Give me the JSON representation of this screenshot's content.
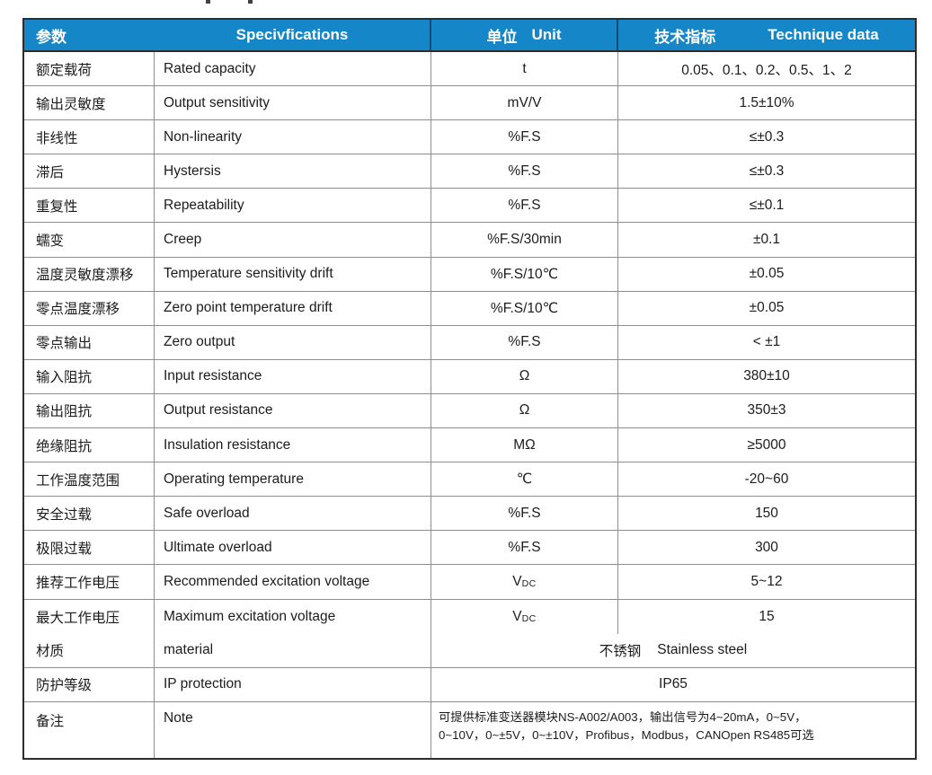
{
  "colors": {
    "header_bg": "#1586c8",
    "header_text": "#ffffff",
    "outer_border": "#2b2d30",
    "grid_line": "#8c8f92",
    "body_text": "#1c1c1c"
  },
  "header": {
    "param_cn": "参数",
    "spec_en": "Specivfications",
    "unit_cn": "单位",
    "unit_en": "Unit",
    "tech_cn": "技术指标",
    "tech_en": "Technique data"
  },
  "rows": [
    {
      "param": "额定载荷",
      "spec": "Rated capacity",
      "unit": "t",
      "value": "0.05、0.1、0.2、0.5、1、2"
    },
    {
      "param": "输出灵敏度",
      "spec": "Output sensitivity",
      "unit": "mV/V",
      "value": "1.5±10%"
    },
    {
      "param": "非线性",
      "spec": "Non-linearity",
      "unit": "%F.S",
      "value": "≤±0.3"
    },
    {
      "param": "滞后",
      "spec": "Hystersis",
      "unit": "%F.S",
      "value": "≤±0.3"
    },
    {
      "param": "重复性",
      "spec": "Repeatability",
      "unit": "%F.S",
      "value": "≤±0.1"
    },
    {
      "param": "蠕变",
      "spec": "Creep",
      "unit": "%F.S/30min",
      "value": "±0.1"
    },
    {
      "param": "温度灵敏度漂移",
      "spec": "Temperature sensitivity drift",
      "unit": "%F.S/10℃",
      "value": "±0.05"
    },
    {
      "param": "零点温度漂移",
      "spec": "Zero point temperature drift",
      "unit": "%F.S/10℃",
      "value": "±0.05"
    },
    {
      "param": "零点输出",
      "spec": "Zero output",
      "unit": "%F.S",
      "value": "< ±1"
    },
    {
      "param": "输入阻抗",
      "spec": "Input resistance",
      "unit": "Ω",
      "value": "380±10"
    },
    {
      "param": "输出阻抗",
      "spec": "Output resistance",
      "unit": "Ω",
      "value": "350±3"
    },
    {
      "param": "绝缘阻抗",
      "spec": "Insulation resistance",
      "unit": "MΩ",
      "value": "≥5000"
    },
    {
      "param": "工作温度范围",
      "spec": "Operating temperature",
      "unit": "℃",
      "value": "-20~60"
    },
    {
      "param": "安全过载",
      "spec": "Safe overload",
      "unit": "%F.S",
      "value": "150"
    },
    {
      "param": "极限过载",
      "spec": "Ultimate overload",
      "unit": "%F.S",
      "value": "300"
    },
    {
      "param": "推荐工作电压",
      "spec": "Recommended excitation voltage",
      "unit": "V",
      "unit_sub": "DC",
      "value": "5~12"
    },
    {
      "param": "最大工作电压",
      "spec": "Maximum excitation voltage",
      "unit": "V",
      "unit_sub": "DC",
      "value": "15"
    }
  ],
  "merged": {
    "material": {
      "param": "材质",
      "spec": "material",
      "value_cn": "不锈钢",
      "value_en": "Stainless steel"
    },
    "ip": {
      "param": "防护等级",
      "spec": "IP protection",
      "value": "IP65"
    },
    "note": {
      "param": "备注",
      "spec": "Note",
      "line1": "可提供标准变送器模块NS-A002/A003，输出信号为4~20mA，0~5V，",
      "line2": "0~10V，0~±5V，0~±10V，Profibus，Modbus，CANOpen RS485可选"
    }
  }
}
